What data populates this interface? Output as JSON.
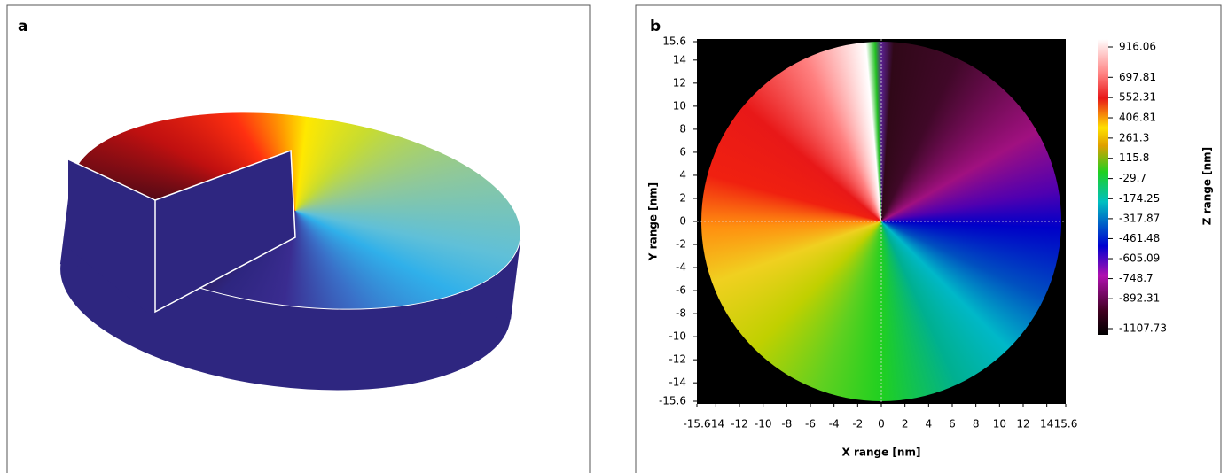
{
  "panel_a": {
    "label": "a"
  },
  "chart_data": {
    "type": "heatmap",
    "panel_label": "b",
    "xlabel": "X range [nm]",
    "ylabel": "Y range [nm]",
    "colorbar_label": "Z range [nm]",
    "xlim": [
      -15.6,
      15.6
    ],
    "ylim": [
      -15.6,
      15.6
    ],
    "xticks": [
      -15.6,
      -14,
      -12,
      -10,
      -8,
      -6,
      -4,
      -2,
      0,
      2,
      4,
      6,
      8,
      10,
      12,
      14,
      15.6
    ],
    "yticks": [
      -15.6,
      -14,
      -12,
      -10,
      -8,
      -6,
      -4,
      -2,
      0,
      2,
      4,
      6,
      8,
      10,
      12,
      14,
      15.6
    ],
    "clim": [
      -1107.73,
      916.06
    ],
    "colorbar_ticks": [
      916.06,
      697.81,
      552.31,
      406.81,
      261.3,
      115.8,
      -29.7,
      -174.25,
      -317.87,
      -461.48,
      -605.09,
      -748.7,
      -892.31,
      -1107.73
    ]
  }
}
